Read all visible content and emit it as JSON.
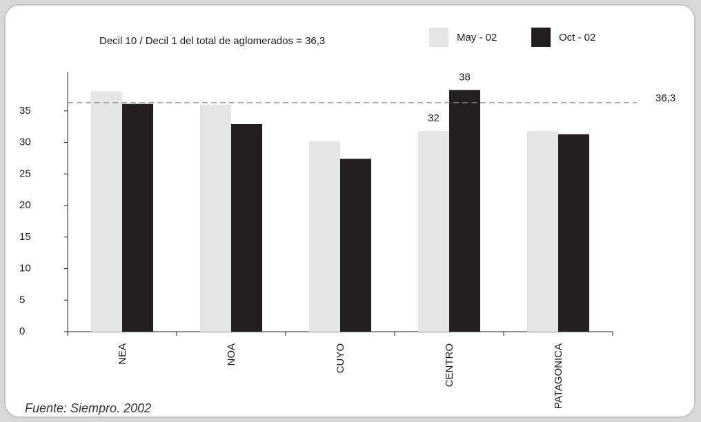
{
  "chart_data": {
    "type": "bar",
    "title": "Decil 10 /  Decil 1 del total de aglomerados = 36,3",
    "categories": [
      "NEA",
      "NOA",
      "CUYO",
      "CENTRO",
      "PATAGONICA"
    ],
    "series": [
      {
        "name": "May - 02",
        "values": [
          38.1,
          36.0,
          30.2,
          31.8,
          31.8
        ],
        "color": "#e6e6e6"
      },
      {
        "name": "Oct - 02",
        "values": [
          36.1,
          32.9,
          27.4,
          38.3,
          31.3
        ],
        "color": "#231f20"
      }
    ],
    "data_labels": [
      {
        "category": "CENTRO",
        "series": "May - 02",
        "text": "32"
      },
      {
        "category": "CENTRO",
        "series": "Oct - 02",
        "text": "38"
      }
    ],
    "reference_line": {
      "value": 36.3,
      "label": "36,3",
      "style": "dashed"
    },
    "y_ticks": [
      {
        "value": 0,
        "label": "0"
      },
      {
        "value": 5,
        "label": "5"
      },
      {
        "value": 10,
        "label": "10"
      },
      {
        "value": 15,
        "label": "15"
      },
      {
        "value": 20,
        "label": "20"
      },
      {
        "value": 25,
        "label": "25"
      },
      {
        "value": 30,
        "label": "30"
      },
      {
        "value": 35,
        "label": "35"
      }
    ],
    "ylim": [
      0,
      41
    ],
    "xlabel": "",
    "ylabel": "",
    "grid": false,
    "legend_position": "top-right"
  },
  "source_note": "Fuente: Siempro. 2002"
}
